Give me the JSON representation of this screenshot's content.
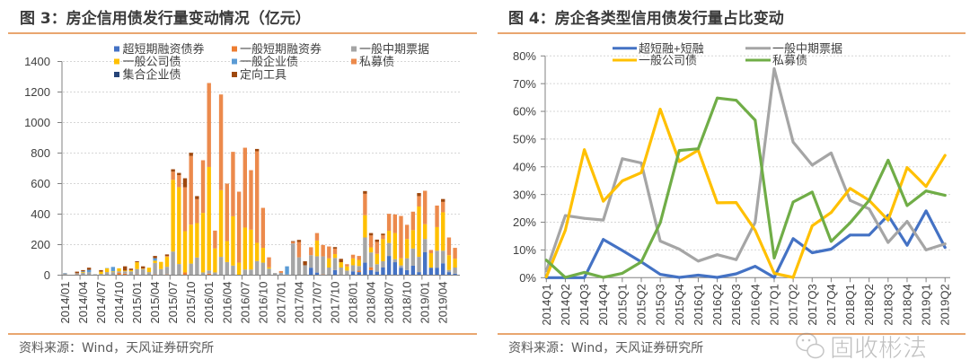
{
  "panels": {
    "left": {
      "source": "资料来源：Wind，天风证券研究所"
    },
    "right": {
      "source": "资料来源：Wind，天风证券研究所"
    }
  },
  "watermark": {
    "text": "固收彬法"
  },
  "chart_data": [
    {
      "type": "bar",
      "stacked": true,
      "title": "图 3：房企信用债发行量变动情况（亿元）",
      "xlabel": "",
      "ylabel": "",
      "ylim": [
        0,
        1400
      ],
      "ytick_labels": [
        "0",
        "200",
        "400",
        "600",
        "800",
        "1000",
        "1200",
        "1400"
      ],
      "grid": true,
      "legend_position": "top",
      "categories": [
        "2014/01",
        "2014/02",
        "2014/03",
        "2014/04",
        "2014/05",
        "2014/06",
        "2014/07",
        "2014/08",
        "2014/09",
        "2014/10",
        "2014/11",
        "2014/12",
        "2015/01",
        "2015/02",
        "2015/03",
        "2015/04",
        "2015/05",
        "2015/06",
        "2015/07",
        "2015/08",
        "2015/09",
        "2015/10",
        "2015/11",
        "2015/12",
        "2016/01",
        "2016/02",
        "2016/03",
        "2016/04",
        "2016/05",
        "2016/06",
        "2016/07",
        "2016/08",
        "2016/09",
        "2016/10",
        "2016/11",
        "2016/12",
        "2017/01",
        "2017/02",
        "2017/03",
        "2017/04",
        "2017/05",
        "2017/06",
        "2017/07",
        "2017/08",
        "2017/09",
        "2017/10",
        "2017/11",
        "2017/12",
        "2018/01",
        "2018/02",
        "2018/03",
        "2018/04",
        "2018/05",
        "2018/06",
        "2018/07",
        "2018/08",
        "2018/09",
        "2018/10",
        "2018/11",
        "2018/12",
        "2019/01",
        "2019/02",
        "2019/03",
        "2019/04",
        "2019/05",
        "2019/06"
      ],
      "series": [
        {
          "name": "超短期融资债券",
          "color": "#4472C4",
          "values": [
            0,
            0,
            0,
            0,
            0,
            0,
            0,
            0,
            0,
            0,
            0,
            0,
            0,
            0,
            0,
            0,
            0,
            0,
            0,
            0,
            0,
            0,
            0,
            0,
            0,
            0,
            0,
            0,
            0,
            0,
            0,
            0,
            0,
            0,
            0,
            0,
            0,
            0,
            0,
            0,
            0,
            49,
            17,
            0,
            0,
            33,
            0,
            0,
            25,
            20,
            82,
            33,
            23,
            50,
            126,
            85,
            49,
            33,
            62,
            20,
            150,
            49,
            49,
            78,
            20,
            10
          ]
        },
        {
          "name": "一般短期融资券",
          "color": "#ED7D31",
          "values": [
            0,
            0,
            5,
            0,
            0,
            0,
            0,
            0,
            0,
            15,
            10,
            0,
            5,
            0,
            0,
            5,
            0,
            5,
            0,
            0,
            18,
            0,
            0,
            0,
            10,
            0,
            0,
            0,
            0,
            0,
            0,
            0,
            0,
            0,
            0,
            0,
            0,
            0,
            0,
            0,
            0,
            0,
            0,
            5,
            0,
            0,
            0,
            0,
            0,
            10,
            0,
            19,
            0,
            0,
            0,
            0,
            0,
            0,
            0,
            0,
            0,
            0,
            0,
            0,
            0,
            0
          ]
        },
        {
          "name": "一般中期票据",
          "color": "#A5A5A5",
          "values": [
            12,
            2,
            8,
            15,
            20,
            6,
            8,
            20,
            20,
            10,
            15,
            25,
            35,
            40,
            20,
            75,
            40,
            50,
            155,
            73,
            0,
            76,
            116,
            18,
            21,
            18,
            120,
            86,
            63,
            0,
            37,
            37,
            92,
            82,
            43,
            14,
            15,
            5,
            208,
            117,
            65,
            82,
            107,
            118,
            50,
            80,
            50,
            30,
            40,
            30,
            165,
            97,
            49,
            41,
            85,
            20,
            15,
            78,
            113,
            100,
            87,
            0,
            111,
            82,
            14,
            40
          ]
        },
        {
          "name": "一般公司债",
          "color": "#FFC000",
          "values": [
            0,
            0,
            0,
            5,
            0,
            0,
            15,
            25,
            5,
            20,
            5,
            8,
            45,
            3,
            29,
            15,
            47,
            65,
            470,
            504,
            270,
            255,
            225,
            390,
            678,
            157,
            437,
            137,
            323,
            82,
            275,
            261,
            120,
            97,
            8,
            0,
            0,
            0,
            0,
            0,
            0,
            0,
            103,
            0,
            60,
            25,
            35,
            27,
            45,
            40,
            146,
            33,
            68,
            145,
            80,
            171,
            47,
            126,
            120,
            330,
            97,
            95,
            155,
            252,
            97,
            58
          ]
        },
        {
          "name": "一般企业债",
          "color": "#5B9BD5",
          "values": [
            2,
            0,
            0,
            5,
            15,
            0,
            0,
            2,
            29,
            0,
            0,
            0,
            0,
            0,
            0,
            16,
            0,
            0,
            0,
            0,
            0,
            0,
            0,
            0,
            0,
            0,
            0,
            0,
            0,
            0,
            0,
            0,
            0,
            0,
            0,
            0,
            0,
            53,
            0,
            0,
            0,
            0,
            0,
            0,
            0,
            0,
            0,
            0,
            0,
            0,
            0,
            0,
            0,
            0,
            0,
            0,
            0,
            0,
            0,
            0,
            0,
            0,
            0,
            0,
            0,
            0
          ]
        },
        {
          "name": "私募债",
          "color": "#EC8A4C",
          "values": [
            0,
            0,
            0,
            0,
            0,
            0,
            0,
            0,
            0,
            0,
            0,
            0,
            0,
            0,
            0,
            0,
            0,
            5,
            53,
            78,
            288,
            450,
            157,
            345,
            550,
            117,
            627,
            377,
            422,
            465,
            523,
            390,
            600,
            262,
            66,
            0,
            12,
            0,
            10,
            100,
            0,
            52,
            49,
            75,
            78,
            36,
            0,
            15,
            24,
            26,
            140,
            78,
            78,
            26,
            111,
            122,
            277,
            93,
            121,
            68,
            219,
            21,
            141,
            68,
            116,
            71
          ]
        },
        {
          "name": "集合企业债",
          "color": "#264478",
          "values": [
            0,
            0,
            0,
            0,
            0,
            0,
            0,
            0,
            0,
            0,
            0,
            0,
            0,
            0,
            0,
            0,
            0,
            0,
            0,
            0,
            0,
            0,
            0,
            0,
            0,
            0,
            0,
            0,
            0,
            0,
            0,
            0,
            0,
            0,
            0,
            0,
            0,
            0,
            0,
            0,
            0,
            0,
            0,
            0,
            0,
            0,
            0,
            0,
            0,
            0,
            0,
            0,
            0,
            0,
            0,
            0,
            0,
            0,
            0,
            0,
            0,
            0,
            0,
            0,
            0,
            0
          ]
        },
        {
          "name": "定向工具",
          "color": "#9E480E",
          "values": [
            0,
            0,
            10,
            8,
            14,
            0,
            10,
            0,
            0,
            0,
            28,
            10,
            6,
            15,
            0,
            15,
            0,
            11,
            16,
            15,
            59,
            21,
            20,
            0,
            0,
            0,
            0,
            0,
            0,
            0,
            0,
            0,
            15,
            0,
            0,
            0,
            0,
            0,
            5,
            14,
            26,
            0,
            0,
            0,
            0,
            10,
            22,
            0,
            0,
            0,
            18,
            16,
            15,
            10,
            0,
            0,
            0,
            0,
            0,
            20,
            0,
            0,
            0,
            19,
            0,
            0
          ]
        }
      ]
    },
    {
      "type": "line",
      "title": "图 4：房企各类型信用债发行量占比变动",
      "xlabel": "",
      "ylabel": "",
      "ylim": [
        0,
        80
      ],
      "ytick_labels": [
        "0%",
        "10%",
        "20%",
        "30%",
        "40%",
        "50%",
        "60%",
        "70%",
        "80%"
      ],
      "grid": true,
      "legend_position": "top",
      "categories": [
        "2014Q1",
        "2014Q2",
        "2014Q3",
        "2014Q4",
        "2015Q1",
        "2015Q2",
        "2015Q3",
        "2015Q4",
        "2016Q1",
        "2016Q2",
        "2016Q3",
        "2016Q4",
        "2017Q1",
        "2017Q2",
        "2017Q3",
        "2017Q4",
        "2018Q1",
        "2018Q2",
        "2018Q3",
        "2018Q4",
        "2019Q1",
        "2019Q2"
      ],
      "series": [
        {
          "name": "超短融+短融",
          "color": "#4472C4",
          "values": [
            0,
            0,
            0,
            13.8,
            9.8,
            5.7,
            1.2,
            0.1,
            0.9,
            0.1,
            1.4,
            4.1,
            0.1,
            14.1,
            9.0,
            10.3,
            15.4,
            15.4,
            22.5,
            11.7,
            24.1,
            10.9
          ]
        },
        {
          "name": "一般中期票据",
          "color": "#A5A5A5",
          "values": [
            2.5,
            22.4,
            21.4,
            20.8,
            42.9,
            41.4,
            13.2,
            10.3,
            6.0,
            8.3,
            6.5,
            20.0,
            75.4,
            48.9,
            40.6,
            45.0,
            27.9,
            24.8,
            12.7,
            20.3,
            10.0,
            12.2
          ]
        },
        {
          "name": "一般公司债",
          "color": "#FFC000",
          "values": [
            0.3,
            17.1,
            46.2,
            27.6,
            34.9,
            37.9,
            60.8,
            41.9,
            46.0,
            27.0,
            27.1,
            17.1,
            1.6,
            0.1,
            18.7,
            23.5,
            32.2,
            27.9,
            20.8,
            39.7,
            32.9,
            44.1
          ]
        },
        {
          "name": "私募债",
          "color": "#70AD47",
          "values": [
            6.3,
            0.1,
            1.9,
            0.1,
            1.6,
            5.7,
            19.8,
            45.9,
            46.5,
            64.8,
            64.0,
            56.8,
            7.1,
            27.3,
            30.9,
            13.1,
            19.8,
            27.9,
            42.4,
            26.0,
            31.3,
            29.7
          ]
        }
      ]
    }
  ]
}
